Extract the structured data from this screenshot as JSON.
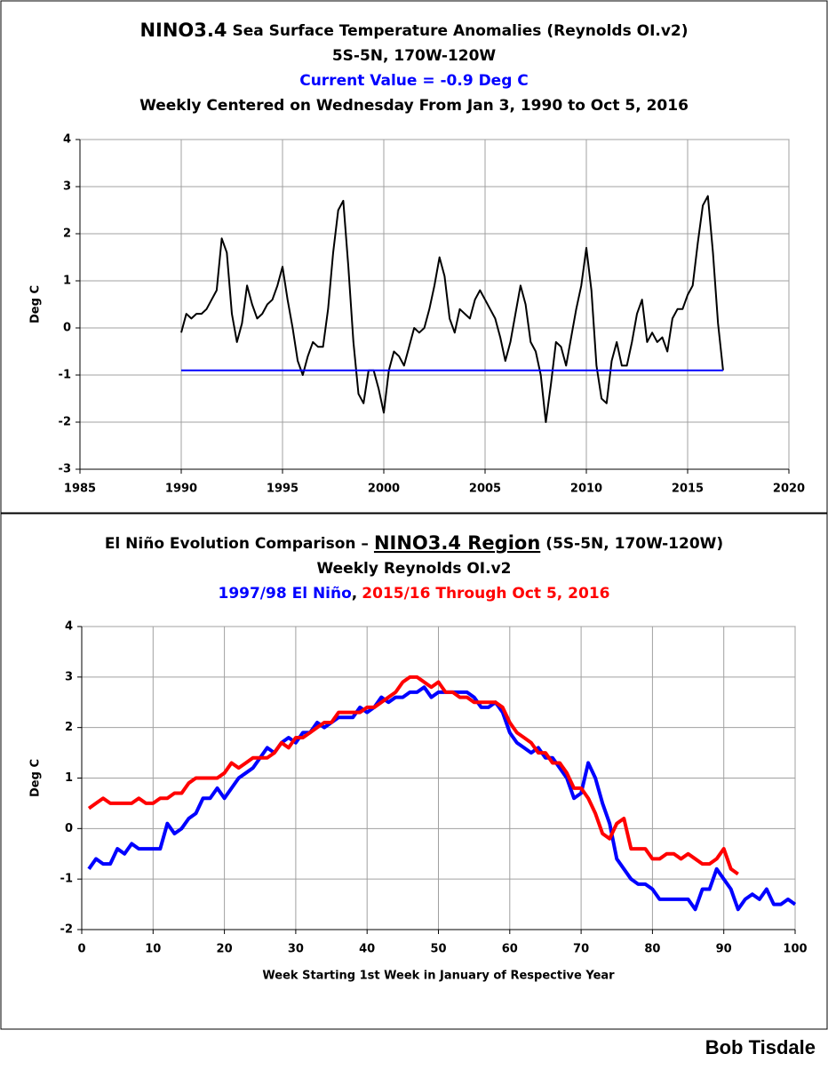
{
  "chart_data": [
    {
      "type": "line",
      "title": [
        "NINO3.4",
        "Sea Surface Temperature Anomalies (Reynolds OI.v2)"
      ],
      "subtitles": [
        {
          "text": "5S-5N, 170W-120W",
          "color": "#000000"
        },
        {
          "text": "Current Value = -0.9 Deg C",
          "color": "#0000ff"
        },
        {
          "text": "Weekly Centered on Wednesday From Jan 3, 1990 to Oct 5, 2016",
          "color": "#000000"
        }
      ],
      "ylabel": "Deg C",
      "xlim": [
        1985,
        2020
      ],
      "xticks": [
        1985,
        1990,
        1995,
        2000,
        2005,
        2010,
        2015,
        2020
      ],
      "ylim": [
        -3,
        4
      ],
      "yticks": [
        -3,
        -2,
        -1,
        0,
        1,
        2,
        3,
        4
      ],
      "grid": true,
      "reference_line": {
        "value": -0.9,
        "color": "#0000ff"
      },
      "x": [
        1990,
        1990.25,
        1990.5,
        1990.75,
        1991,
        1991.25,
        1991.5,
        1991.75,
        1992,
        1992.25,
        1992.5,
        1992.75,
        1993,
        1993.25,
        1993.5,
        1993.75,
        1994,
        1994.25,
        1994.5,
        1994.75,
        1995,
        1995.25,
        1995.5,
        1995.75,
        1996,
        1996.25,
        1996.5,
        1996.75,
        1997,
        1997.25,
        1997.5,
        1997.75,
        1998,
        1998.25,
        1998.5,
        1998.75,
        1999,
        1999.25,
        1999.5,
        1999.75,
        2000,
        2000.25,
        2000.5,
        2000.75,
        2001,
        2001.25,
        2001.5,
        2001.75,
        2002,
        2002.25,
        2002.5,
        2002.75,
        2003,
        2003.25,
        2003.5,
        2003.75,
        2004,
        2004.25,
        2004.5,
        2004.75,
        2005,
        2005.25,
        2005.5,
        2005.75,
        2006,
        2006.25,
        2006.5,
        2006.75,
        2007,
        2007.25,
        2007.5,
        2007.75,
        2008,
        2008.25,
        2008.5,
        2008.75,
        2009,
        2009.25,
        2009.5,
        2009.75,
        2010,
        2010.25,
        2010.5,
        2010.75,
        2011,
        2011.25,
        2011.5,
        2011.75,
        2012,
        2012.25,
        2012.5,
        2012.75,
        2013,
        2013.25,
        2013.5,
        2013.75,
        2014,
        2014.25,
        2014.5,
        2014.75,
        2015,
        2015.25,
        2015.5,
        2015.75,
        2016,
        2016.25,
        2016.5,
        2016.75
      ],
      "series": [
        {
          "color": "#000000",
          "values": [
            -0.1,
            0.3,
            0.2,
            0.3,
            0.3,
            0.4,
            0.6,
            0.8,
            1.9,
            1.6,
            0.3,
            -0.3,
            0.1,
            0.9,
            0.5,
            0.2,
            0.3,
            0.5,
            0.6,
            0.9,
            1.3,
            0.6,
            0.0,
            -0.7,
            -1.0,
            -0.6,
            -0.3,
            -0.4,
            -0.4,
            0.4,
            1.6,
            2.5,
            2.7,
            1.3,
            -0.3,
            -1.4,
            -1.6,
            -0.9,
            -0.9,
            -1.3,
            -1.8,
            -0.9,
            -0.5,
            -0.6,
            -0.8,
            -0.4,
            0.0,
            -0.1,
            0.0,
            0.4,
            0.9,
            1.5,
            1.1,
            0.2,
            -0.1,
            0.4,
            0.3,
            0.2,
            0.6,
            0.8,
            0.6,
            0.4,
            0.2,
            -0.2,
            -0.7,
            -0.3,
            0.3,
            0.9,
            0.5,
            -0.3,
            -0.5,
            -1.0,
            -2.0,
            -1.2,
            -0.3,
            -0.4,
            -0.8,
            -0.2,
            0.4,
            0.9,
            1.7,
            0.8,
            -0.8,
            -1.5,
            -1.6,
            -0.7,
            -0.3,
            -0.8,
            -0.8,
            -0.3,
            0.3,
            0.6,
            -0.3,
            -0.1,
            -0.3,
            -0.2,
            -0.5,
            0.2,
            0.4,
            0.4,
            0.7,
            0.9,
            1.8,
            2.6,
            2.8,
            1.6,
            0.1,
            -0.9
          ]
        }
      ]
    },
    {
      "type": "line",
      "title": [
        "El Niño Evolution Comparison –",
        "NINO3.4 Region",
        "(5S-5N, 170W-120W)"
      ],
      "subtitles": [
        {
          "text": "Weekly Reynolds OI.v2",
          "color": "#000000"
        }
      ],
      "legend_separator": ",",
      "ylabel": "Deg C",
      "xlabel": "Week Starting 1st Week in January of Respective Year",
      "xlim": [
        0,
        100
      ],
      "xticks": [
        0,
        10,
        20,
        30,
        40,
        50,
        60,
        70,
        80,
        90,
        100
      ],
      "ylim": [
        -2,
        4
      ],
      "yticks": [
        -2,
        -1,
        0,
        1,
        2,
        3,
        4
      ],
      "grid": true,
      "x": [
        1,
        2,
        3,
        4,
        5,
        6,
        7,
        8,
        9,
        10,
        11,
        12,
        13,
        14,
        15,
        16,
        17,
        18,
        19,
        20,
        21,
        22,
        23,
        24,
        25,
        26,
        27,
        28,
        29,
        30,
        31,
        32,
        33,
        34,
        35,
        36,
        37,
        38,
        39,
        40,
        41,
        42,
        43,
        44,
        45,
        46,
        47,
        48,
        49,
        50,
        51,
        52,
        53,
        54,
        55,
        56,
        57,
        58,
        59,
        60,
        61,
        62,
        63,
        64,
        65,
        66,
        67,
        68,
        69,
        70,
        71,
        72,
        73,
        74,
        75,
        76,
        77,
        78,
        79,
        80,
        81,
        82,
        83,
        84,
        85,
        86,
        87,
        88,
        89,
        90,
        91,
        92,
        93,
        94,
        95,
        96,
        97,
        98,
        99,
        100
      ],
      "series": [
        {
          "name": "1997/98 El Niño",
          "color": "#0000ff",
          "values": [
            -0.8,
            -0.6,
            -0.7,
            -0.7,
            -0.4,
            -0.5,
            -0.3,
            -0.4,
            -0.4,
            -0.4,
            -0.4,
            0.1,
            -0.1,
            0.0,
            0.2,
            0.3,
            0.6,
            0.6,
            0.8,
            0.6,
            0.8,
            1.0,
            1.1,
            1.2,
            1.4,
            1.6,
            1.5,
            1.7,
            1.8,
            1.7,
            1.9,
            1.9,
            2.1,
            2.0,
            2.1,
            2.2,
            2.2,
            2.2,
            2.4,
            2.3,
            2.4,
            2.6,
            2.5,
            2.6,
            2.6,
            2.7,
            2.7,
            2.8,
            2.6,
            2.7,
            2.7,
            2.7,
            2.7,
            2.7,
            2.6,
            2.4,
            2.4,
            2.5,
            2.3,
            1.9,
            1.7,
            1.6,
            1.5,
            1.6,
            1.4,
            1.4,
            1.2,
            1.0,
            0.6,
            0.7,
            1.3,
            1.0,
            0.5,
            0.1,
            -0.6,
            -0.8,
            -1.0,
            -1.1,
            -1.1,
            -1.2,
            -1.4,
            -1.4,
            -1.4,
            -1.4,
            -1.4,
            -1.6,
            -1.2,
            -1.2,
            -0.8,
            -1.0,
            -1.2,
            -1.6,
            -1.4,
            -1.3,
            -1.4,
            -1.2,
            -1.5,
            -1.5,
            -1.4,
            -1.5
          ]
        },
        {
          "name": "2015/16 Through Oct 5, 2016",
          "color": "#ff0000",
          "values": [
            0.4,
            0.5,
            0.6,
            0.5,
            0.5,
            0.5,
            0.5,
            0.6,
            0.5,
            0.5,
            0.6,
            0.6,
            0.7,
            0.7,
            0.9,
            1.0,
            1.0,
            1.0,
            1.0,
            1.1,
            1.3,
            1.2,
            1.3,
            1.4,
            1.4,
            1.4,
            1.5,
            1.7,
            1.6,
            1.8,
            1.8,
            1.9,
            2.0,
            2.1,
            2.1,
            2.3,
            2.3,
            2.3,
            2.3,
            2.4,
            2.4,
            2.5,
            2.6,
            2.7,
            2.9,
            3.0,
            3.0,
            2.9,
            2.8,
            2.9,
            2.7,
            2.7,
            2.6,
            2.6,
            2.5,
            2.5,
            2.5,
            2.5,
            2.4,
            2.1,
            1.9,
            1.8,
            1.7,
            1.5,
            1.5,
            1.3,
            1.3,
            1.1,
            0.8,
            0.8,
            0.6,
            0.3,
            -0.1,
            -0.2,
            0.1,
            0.2,
            -0.4,
            -0.4,
            -0.4,
            -0.6,
            -0.6,
            -0.5,
            -0.5,
            -0.6,
            -0.5,
            -0.6,
            -0.7,
            -0.7,
            -0.6,
            -0.4,
            -0.8,
            -0.9,
            null,
            null,
            null,
            null,
            null,
            null,
            null,
            null
          ]
        }
      ]
    }
  ],
  "credit": "Bob Tisdale"
}
